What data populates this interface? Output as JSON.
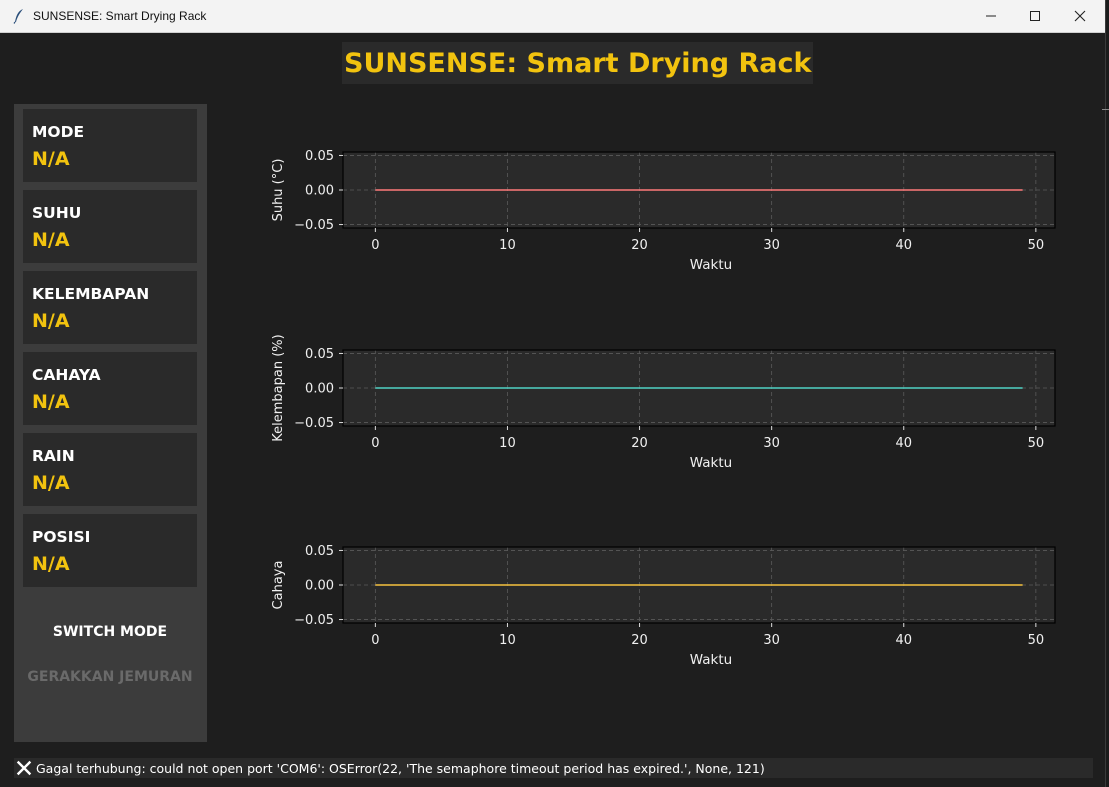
{
  "window": {
    "title": "SUNSENSE: Smart Drying Rack"
  },
  "header": {
    "title": "SUNSENSE: Smart Drying Rack"
  },
  "sidebar": {
    "cards": [
      {
        "label": "MODE",
        "value": "N/A"
      },
      {
        "label": "SUHU",
        "value": "N/A"
      },
      {
        "label": "KELEMBAPAN",
        "value": "N/A"
      },
      {
        "label": "CAHAYA",
        "value": "N/A"
      },
      {
        "label": "RAIN",
        "value": "N/A"
      },
      {
        "label": "POSISI",
        "value": "N/A"
      }
    ],
    "switch_mode_label": "SWITCH MODE",
    "move_rack_label": "GERAKKAN JEMURAN"
  },
  "status": {
    "message": "Gagal terhubung: could not open port 'COM6': OSError(22, 'The semaphore timeout period has expired.', None, 121)"
  },
  "colors": {
    "accent": "#f2c30f",
    "suhu": "#ff7b7b",
    "kelembapan": "#4fd1c5",
    "cahaya": "#f6c23e"
  },
  "chart_data": [
    {
      "type": "line",
      "xlabel": "Waktu",
      "ylabel": "Suhu (°C)",
      "xlim": [
        -2.45,
        51.45
      ],
      "ylim": [
        -0.055,
        0.055
      ],
      "xticks": [
        0,
        10,
        20,
        30,
        40,
        50
      ],
      "yticks": [
        0.05,
        0.0,
        -0.05
      ],
      "ytick_labels": [
        "0.05",
        "0.00",
        "−0.05"
      ],
      "grid": true,
      "color": "#ff7b7b",
      "x": [
        0,
        49
      ],
      "y": [
        0,
        0
      ]
    },
    {
      "type": "line",
      "xlabel": "Waktu",
      "ylabel": "Kelembapan (%)",
      "xlim": [
        -2.45,
        51.45
      ],
      "ylim": [
        -0.055,
        0.055
      ],
      "xticks": [
        0,
        10,
        20,
        30,
        40,
        50
      ],
      "yticks": [
        0.05,
        0.0,
        -0.05
      ],
      "ytick_labels": [
        "0.05",
        "0.00",
        "−0.05"
      ],
      "grid": true,
      "color": "#4fd1c5",
      "x": [
        0,
        49
      ],
      "y": [
        0,
        0
      ]
    },
    {
      "type": "line",
      "xlabel": "Waktu",
      "ylabel": "Cahaya",
      "xlim": [
        -2.45,
        51.45
      ],
      "ylim": [
        -0.055,
        0.055
      ],
      "xticks": [
        0,
        10,
        20,
        30,
        40,
        50
      ],
      "yticks": [
        0.05,
        0.0,
        -0.05
      ],
      "ytick_labels": [
        "0.05",
        "0.00",
        "−0.05"
      ],
      "grid": true,
      "color": "#f6c23e",
      "x": [
        0,
        49
      ],
      "y": [
        0,
        0
      ]
    }
  ]
}
